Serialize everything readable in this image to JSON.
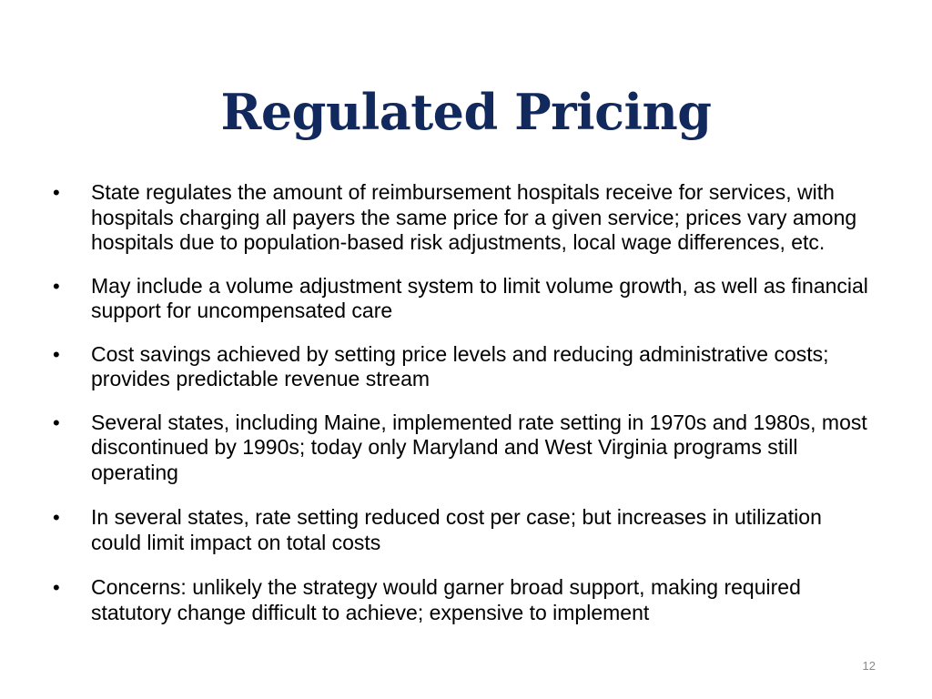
{
  "slide": {
    "title": "Regulated Pricing",
    "page_number": "12",
    "bullets": [
      "State regulates the amount of reimbursement hospitals receive for services, with hospitals charging all payers the same price for a given service; prices vary among hospitals due to population-based risk adjustments, local wage differences, etc.",
      "May include a volume adjustment system to limit volume growth, as well as financial support for uncompensated care",
      "Cost savings achieved by setting price levels and reducing administrative costs; provides predictable revenue stream",
      "Several states, including Maine, implemented rate setting in 1970s and 1980s, most discontinued by 1990s; today only Maryland and West Virginia programs still operating",
      "In several states, rate setting reduced cost per case; but increases in utilization could limit impact on total costs",
      "Concerns: unlikely the strategy would garner broad support, making required statutory change difficult to achieve; expensive to implement"
    ],
    "bullet_glyph": "•"
  }
}
